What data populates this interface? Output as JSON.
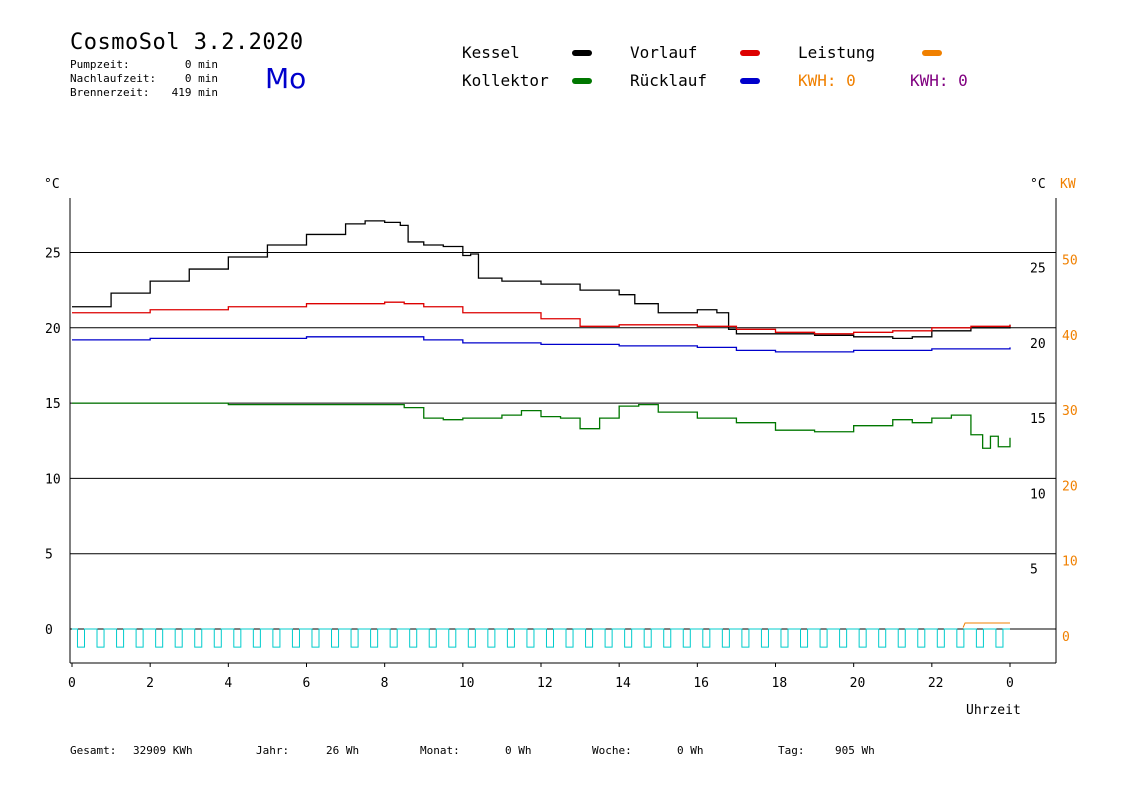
{
  "header": {
    "title": "CosmoSol 3.2.2020",
    "day": "Mo",
    "stats": [
      {
        "label": "Pumpzeit:",
        "value": "0 min"
      },
      {
        "label": "Nachlaufzeit:",
        "value": "0 min"
      },
      {
        "label": "Brennerzeit:",
        "value": "419 min"
      }
    ]
  },
  "legend": {
    "kessel": "Kessel",
    "kollektor": "Kollektor",
    "vorlauf": "Vorlauf",
    "ruecklauf": "Rücklauf",
    "leistung": "Leistung",
    "kwh_orange": "KWH: 0",
    "kwh_purple": "KWH: 0"
  },
  "footer": {
    "gesamt_label": "Gesamt:",
    "gesamt_value": "32909 KWh",
    "jahr_label": "Jahr:",
    "jahr_value": "26 Wh",
    "monat_label": "Monat:",
    "monat_value": "0 Wh",
    "woche_label": "Woche:",
    "woche_value": "0 Wh",
    "tag_label": "Tag:",
    "tag_value": "905 Wh"
  },
  "colors": {
    "kessel": "#000000",
    "vorlauf": "#dd0000",
    "kollektor": "#007700",
    "ruecklauf": "#0000cc",
    "leistung": "#f08000",
    "kwh_purple": "#800080",
    "pump": "#00cccc"
  },
  "chart_data": {
    "type": "line",
    "xlabel": "Uhrzeit",
    "ylabel_left": "°C",
    "ylabel_right": "°C",
    "ylabel_right2": "KW",
    "x_ticks": [
      "0",
      "2",
      "4",
      "6",
      "8",
      "10",
      "12",
      "14",
      "16",
      "18",
      "20",
      "22",
      "0"
    ],
    "y_left_ticks": [
      "0",
      "5",
      "10",
      "15",
      "20",
      "25"
    ],
    "y_right_ticks": [
      "5",
      "10",
      "15",
      "20",
      "25"
    ],
    "y_right2_ticks": [
      "0",
      "10",
      "20",
      "30",
      "40",
      "50"
    ],
    "xlim": [
      0,
      24
    ],
    "ylim": [
      -2,
      29
    ],
    "series": [
      {
        "name": "Kessel",
        "key": "kessel",
        "x": [
          0,
          1,
          2,
          3,
          4,
          5,
          6,
          7,
          7.5,
          8,
          8.4,
          8.6,
          9,
          9.5,
          10,
          10.2,
          10.4,
          11,
          12,
          12.8,
          13,
          14,
          14.4,
          15,
          16,
          16.5,
          16.8,
          17,
          18,
          19,
          20,
          21,
          21.5,
          22,
          23,
          23.5,
          24
        ],
        "y": [
          21.4,
          22.3,
          23.1,
          23.9,
          24.7,
          25.5,
          26.2,
          26.9,
          27.1,
          27.0,
          26.8,
          25.7,
          25.5,
          25.4,
          24.8,
          24.9,
          23.3,
          23.1,
          22.9,
          22.9,
          22.5,
          22.2,
          21.6,
          21.0,
          21.2,
          21.0,
          19.9,
          19.6,
          19.6,
          19.5,
          19.4,
          19.3,
          19.4,
          19.8,
          20.0,
          20.0,
          20.2
        ]
      },
      {
        "name": "Vorlauf",
        "key": "vorlauf",
        "x": [
          0,
          2,
          4,
          6,
          8,
          8.5,
          9,
          10,
          12,
          13,
          14,
          15,
          16,
          17,
          18,
          19,
          20,
          21,
          22,
          23,
          24
        ],
        "y": [
          21.0,
          21.2,
          21.4,
          21.6,
          21.7,
          21.6,
          21.4,
          21.0,
          20.6,
          20.1,
          20.2,
          20.2,
          20.1,
          19.9,
          19.7,
          19.6,
          19.7,
          19.8,
          20.0,
          20.1,
          20.2
        ]
      },
      {
        "name": "Rücklauf",
        "key": "ruecklauf",
        "x": [
          0,
          2,
          4,
          6,
          8,
          9,
          10,
          12,
          14,
          16,
          17,
          18,
          19,
          20,
          22,
          24
        ],
        "y": [
          19.2,
          19.3,
          19.3,
          19.4,
          19.4,
          19.2,
          19.0,
          18.9,
          18.8,
          18.7,
          18.5,
          18.4,
          18.4,
          18.5,
          18.6,
          18.7
        ]
      },
      {
        "name": "Kollektor",
        "key": "kollektor",
        "x": [
          0,
          2,
          4,
          6,
          8,
          8.5,
          9,
          9.5,
          10,
          11,
          11.5,
          12,
          12.5,
          13,
          13.5,
          14,
          14.5,
          15,
          16,
          17,
          18,
          19,
          20,
          21,
          21.5,
          22,
          22.5,
          23,
          23.3,
          23.5,
          23.7,
          24
        ],
        "y": [
          15.0,
          15.0,
          14.9,
          14.9,
          14.9,
          14.7,
          14.0,
          13.9,
          14.0,
          14.2,
          14.5,
          14.1,
          14.0,
          13.3,
          14.0,
          14.8,
          14.9,
          14.4,
          14.0,
          13.7,
          13.2,
          13.1,
          13.5,
          13.9,
          13.7,
          14.0,
          14.2,
          12.9,
          12.0,
          12.8,
          12.1,
          12.7
        ]
      }
    ]
  }
}
